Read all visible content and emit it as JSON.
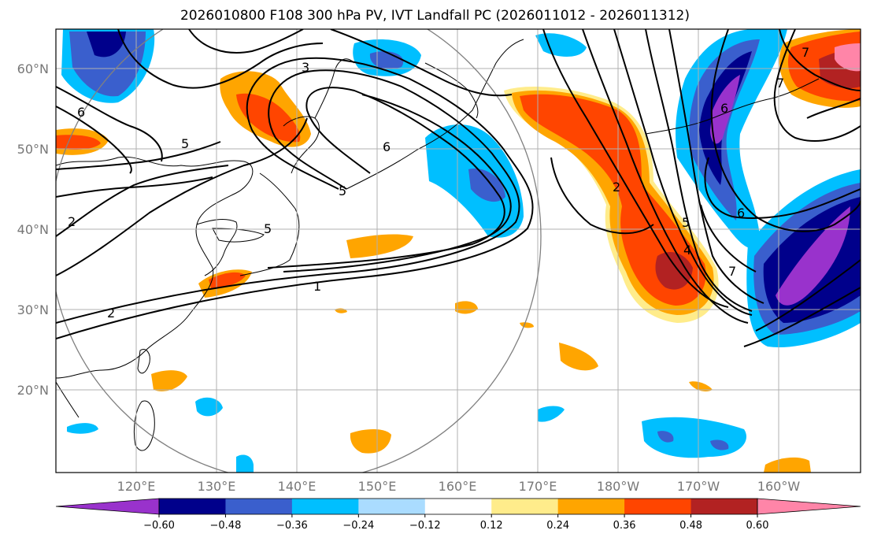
{
  "title": "2026010800 F108 300 hPa PV, IVT Landfall PC (2026011012 - 2026011312)",
  "map": {
    "lat_labels": [
      "60°N",
      "50°N",
      "40°N",
      "30°N",
      "20°N"
    ],
    "lon_labels": [
      "120°E",
      "130°E",
      "140°E",
      "150°E",
      "160°E",
      "170°E",
      "180°W",
      "170°W",
      "160°W"
    ],
    "contour_labels": [
      "1",
      "2",
      "2",
      "3",
      "5",
      "5",
      "6",
      "6",
      "6",
      "2",
      "5",
      "4",
      "7",
      "7",
      "6",
      "7",
      "5"
    ]
  },
  "colorbar": {
    "ticks": [
      "−0.60",
      "−0.48",
      "−0.36",
      "−0.24",
      "−0.12",
      "0.12",
      "0.24",
      "0.36",
      "0.48",
      "0.60"
    ],
    "colors": [
      "#9932cc",
      "#00008b",
      "#3a5fcd",
      "#00bfff",
      "#aadcff",
      "#ffffff",
      "#ffec8b",
      "#ffa500",
      "#ff4500",
      "#b22222",
      "#ff85a8"
    ]
  }
}
